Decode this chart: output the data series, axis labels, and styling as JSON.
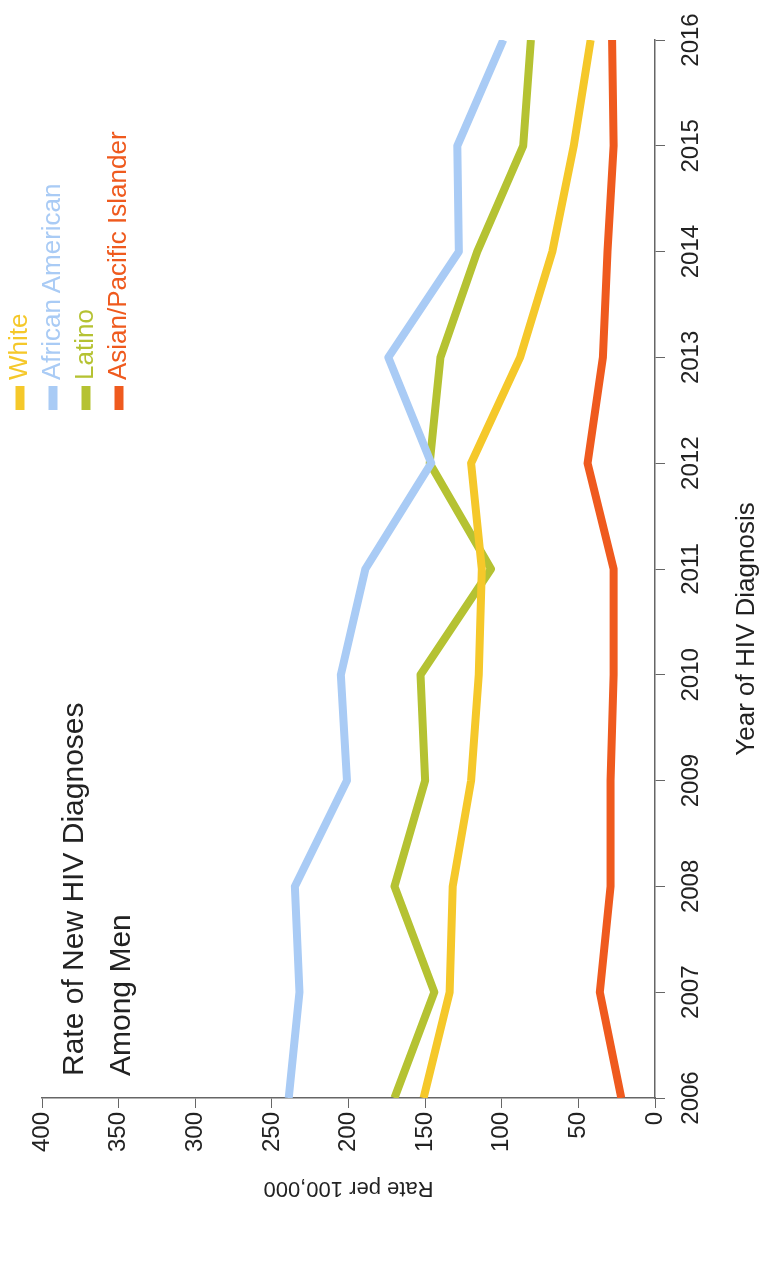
{
  "chart_data": {
    "type": "line",
    "title": "Rate of New HIV Diagnoses Among Men",
    "xlabel": "Rate per 100,000",
    "ylabel": "Year of HIV Diagnosis",
    "series": [
      {
        "name": "White",
        "color": "#f5c82a",
        "x": [
          151,
          134,
          132,
          120,
          115,
          113,
          120,
          88,
          67,
          53,
          42
        ],
        "values": [
          2006,
          2007,
          2008,
          2009,
          2010,
          2011,
          2012,
          2013,
          2014,
          2015,
          2016
        ]
      },
      {
        "name": "African American",
        "color": "#a9cbf5",
        "x": [
          239,
          232,
          235,
          201,
          205,
          189,
          146,
          174,
          128,
          129,
          99
        ],
        "values": [
          2006,
          2007,
          2008,
          2009,
          2010,
          2011,
          2012,
          2013,
          2014,
          2015,
          2016
        ]
      },
      {
        "name": "Latino",
        "color": "#b5c232",
        "x": [
          170,
          144,
          170,
          150,
          153,
          107,
          147,
          140,
          116,
          86,
          81
        ],
        "values": [
          2006,
          2007,
          2008,
          2009,
          2010,
          2011,
          2012,
          2013,
          2014,
          2015,
          2016
        ]
      },
      {
        "name": "Asian/Pacific Islander",
        "color": "#ef5a1e",
        "x": [
          22,
          36,
          29,
          29,
          27,
          27,
          44,
          34,
          31,
          27,
          28
        ],
        "values": [
          2006,
          2007,
          2008,
          2009,
          2010,
          2011,
          2012,
          2013,
          2014,
          2015,
          2016
        ]
      }
    ],
    "xlim": [
      400,
      0
    ],
    "xticks": [
      0,
      50,
      100,
      150,
      200,
      250,
      300,
      350,
      400
    ],
    "ylim": [
      2006,
      2016
    ],
    "yticks": [
      2006,
      2007,
      2008,
      2009,
      2010,
      2011,
      2012,
      2013,
      2014,
      2015,
      2016
    ],
    "grid": false,
    "legend": "top left",
    "marker": "none",
    "line_style": "solid"
  }
}
